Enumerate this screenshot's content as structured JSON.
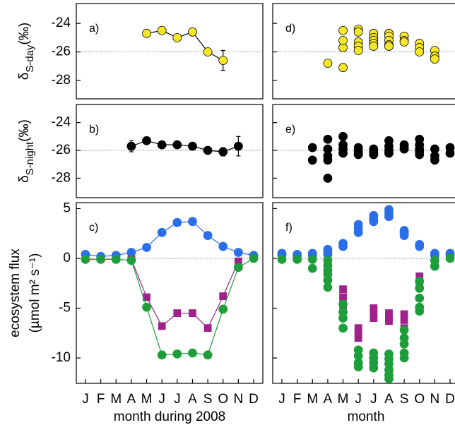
{
  "chart_data": [
    {
      "type": "line",
      "label": "a)",
      "ylabel": {
        "symbol": "δ",
        "subscript": "S-day",
        "unit": "(‰)"
      },
      "xlim": [
        0.4,
        12.6
      ],
      "ylim": [
        -29.3,
        -22.6
      ],
      "yticks": [
        -24,
        -26,
        -28
      ],
      "refline": -26,
      "series": [
        {
          "color": "#f5e62a",
          "edgecolor": "#000000",
          "linecolor": "#000000",
          "marker": "circle",
          "x": [
            5,
            6,
            7,
            8,
            9,
            10
          ],
          "values": [
            -24.7,
            -24.5,
            -25.0,
            -24.6,
            -26.0,
            -26.6
          ],
          "errors": [
            null,
            null,
            null,
            null,
            null,
            0.7
          ]
        }
      ]
    },
    {
      "type": "line",
      "label": "b)",
      "ylabel": {
        "symbol": "δ",
        "subscript": "S-night",
        "unit": "(‰)"
      },
      "xlim": [
        0.4,
        12.6
      ],
      "ylim": [
        -29.4,
        -22.7
      ],
      "yticks": [
        -24,
        -26,
        -28
      ],
      "refline": -26,
      "series": [
        {
          "color": "#000000",
          "edgecolor": "#000000",
          "linecolor": "#000000",
          "marker": "circle",
          "x": [
            4,
            5,
            6,
            7,
            8,
            9,
            10,
            11
          ],
          "values": [
            -25.7,
            -25.3,
            -25.6,
            -25.6,
            -25.7,
            -26.0,
            -26.1,
            -25.7
          ],
          "errors": [
            0.4,
            null,
            null,
            null,
            null,
            null,
            0.3,
            0.7
          ]
        }
      ]
    },
    {
      "type": "line",
      "label": "c)",
      "ylabel": [
        "ecosystem flux",
        "(µmol m² s⁻¹)"
      ],
      "xlabel": "month during 2008",
      "xlim": [
        0.4,
        12.6
      ],
      "ylim": [
        -12.55,
        5.6
      ],
      "yticks": [
        5,
        0,
        -5,
        -10
      ],
      "refline": 0,
      "xticks": [
        {
          "value": 1,
          "label": "J"
        },
        {
          "value": 2,
          "label": "F"
        },
        {
          "value": 3,
          "label": "M"
        },
        {
          "value": 4,
          "label": "A"
        },
        {
          "value": 5,
          "label": "M"
        },
        {
          "value": 6,
          "label": "J"
        },
        {
          "value": 7,
          "label": "J"
        },
        {
          "value": 8,
          "label": "A"
        },
        {
          "value": 9,
          "label": "S"
        },
        {
          "value": 10,
          "label": "O"
        },
        {
          "value": 11,
          "label": "N"
        },
        {
          "value": 12,
          "label": "D"
        }
      ],
      "series": [
        {
          "color": "#2b6fe8",
          "marker": "circle",
          "x": [
            1,
            2,
            3,
            4,
            5,
            6,
            7,
            8,
            9,
            10,
            11,
            12
          ],
          "values": [
            0.4,
            0.2,
            0.3,
            0.6,
            1.1,
            2.6,
            3.6,
            3.7,
            2.3,
            1.2,
            0.6,
            0.3
          ]
        },
        {
          "color": "#a0208c",
          "marker": "square",
          "x": [
            1,
            2,
            3,
            4,
            5,
            6,
            7,
            8,
            9,
            10,
            11,
            12
          ],
          "values": [
            null,
            null,
            null,
            -0.1,
            -3.9,
            -6.8,
            -5.5,
            -5.5,
            -7.0,
            -3.8,
            -0.3,
            null
          ]
        },
        {
          "color": "#1e9e3a",
          "marker": "circle",
          "x": [
            1,
            2,
            3,
            4,
            5,
            6,
            7,
            8,
            9,
            10,
            11,
            12
          ],
          "values": [
            -0.1,
            -0.1,
            -0.1,
            -0.2,
            -4.9,
            -9.7,
            -9.6,
            -9.5,
            -9.7,
            -5.1,
            -0.9,
            0.0
          ]
        }
      ]
    },
    {
      "type": "scatter",
      "label": "d)",
      "xlim": [
        0.4,
        12.6
      ],
      "ylim": [
        -29.3,
        -22.6
      ],
      "yticks": [
        -24,
        -26,
        -28
      ],
      "refline": -26,
      "series": [
        {
          "color": "#f5e62a",
          "edgecolor": "#000000",
          "marker": "circle",
          "x": [
            4,
            5,
            5,
            5,
            5,
            6,
            6,
            6,
            6,
            6,
            7,
            7,
            7,
            7,
            7,
            8,
            8,
            8,
            8,
            8,
            9,
            9,
            9,
            10,
            10,
            10,
            11,
            11,
            11
          ],
          "values": [
            -26.8,
            -27.1,
            -25.7,
            -25.2,
            -24.5,
            -24.4,
            -24.6,
            -25.3,
            -25.6,
            -25.9,
            -24.7,
            -25.0,
            -25.2,
            -25.4,
            -25.6,
            -24.7,
            -24.9,
            -25.2,
            -25.5,
            -25.6,
            -24.9,
            -25.2,
            -25.3,
            -25.4,
            -25.7,
            -26.0,
            -25.9,
            -26.3,
            -26.5
          ]
        }
      ]
    },
    {
      "type": "scatter",
      "label": "e)",
      "xlim": [
        0.4,
        12.6
      ],
      "ylim": [
        -29.4,
        -22.7
      ],
      "yticks": [
        -24,
        -26,
        -28
      ],
      "refline": -26,
      "series": [
        {
          "color": "#000000",
          "edgecolor": "#000000",
          "marker": "circle",
          "x": [
            3,
            3,
            4,
            4,
            4,
            4,
            4,
            5,
            5,
            5,
            5,
            6,
            6,
            6,
            6,
            7,
            7,
            7,
            7,
            8,
            8,
            8,
            8,
            9,
            9,
            9,
            10,
            10,
            10,
            10,
            10,
            11,
            11,
            11,
            12,
            12
          ],
          "values": [
            -25.8,
            -26.7,
            -25.2,
            -25.9,
            -26.4,
            -26.7,
            -28.0,
            -25.0,
            -25.6,
            -25.9,
            -26.2,
            -25.8,
            -26.0,
            -26.2,
            -26.3,
            -25.9,
            -26.1,
            -26.2,
            -26.3,
            -25.3,
            -25.7,
            -26.0,
            -26.2,
            -25.6,
            -25.8,
            -25.9,
            -25.2,
            -25.6,
            -25.9,
            -26.1,
            -26.3,
            -25.9,
            -26.4,
            -26.7,
            -25.8,
            -26.2
          ]
        }
      ]
    },
    {
      "type": "scatter",
      "label": "f)",
      "xlabel": "month",
      "xlim": [
        0.4,
        12.6
      ],
      "ylim": [
        -12.55,
        5.6
      ],
      "yticks": [
        5,
        0,
        -5,
        -10
      ],
      "refline": 0,
      "xticks": [
        {
          "value": 1,
          "label": "J"
        },
        {
          "value": 2,
          "label": "F"
        },
        {
          "value": 3,
          "label": "M"
        },
        {
          "value": 4,
          "label": "A"
        },
        {
          "value": 5,
          "label": "M"
        },
        {
          "value": 6,
          "label": "J"
        },
        {
          "value": 7,
          "label": "J"
        },
        {
          "value": 8,
          "label": "A"
        },
        {
          "value": 9,
          "label": "S"
        },
        {
          "value": 10,
          "label": "O"
        },
        {
          "value": 11,
          "label": "N"
        },
        {
          "value": 12,
          "label": "D"
        }
      ],
      "series": [
        {
          "color": "#2b6fe8",
          "marker": "circle",
          "x": [
            1,
            1,
            2,
            2,
            3,
            3,
            4,
            4,
            4,
            5,
            5,
            6,
            6,
            6,
            7,
            7,
            7,
            8,
            8,
            8,
            9,
            9,
            9,
            10,
            10,
            11,
            11,
            12,
            12
          ],
          "values": [
            0.3,
            0.5,
            0.2,
            0.4,
            0.3,
            0.5,
            0.4,
            0.7,
            0.9,
            1.2,
            1.5,
            2.6,
            3.0,
            3.4,
            3.7,
            4.0,
            4.3,
            4.2,
            4.6,
            4.9,
            2.3,
            2.6,
            2.8,
            1.2,
            1.4,
            0.3,
            0.5,
            0.3,
            0.5
          ]
        },
        {
          "color": "#a0208c",
          "marker": "square",
          "x": [
            5,
            5,
            5,
            6,
            6,
            6,
            7,
            7,
            7,
            8,
            8,
            8,
            9,
            9,
            9,
            10,
            10,
            11
          ],
          "values": [
            -3.1,
            -3.9,
            -4.7,
            -7.0,
            -7.5,
            -8.0,
            -5.0,
            -5.5,
            -6.0,
            -5.5,
            -6.0,
            -6.3,
            -5.6,
            -6.2,
            -7.0,
            -1.8,
            -2.5,
            -0.3
          ]
        },
        {
          "color": "#1e9e3a",
          "marker": "circle",
          "x": [
            1,
            2,
            3,
            3,
            4,
            4,
            4,
            4,
            4,
            4,
            5,
            5,
            5,
            5,
            6,
            6,
            6,
            6,
            7,
            7,
            7,
            7,
            8,
            8,
            8,
            8,
            8,
            8,
            9,
            9,
            9,
            9,
            9,
            10,
            10,
            10,
            10,
            10,
            11,
            11,
            12
          ],
          "values": [
            -0.1,
            -0.1,
            -0.1,
            -1.0,
            -0.2,
            -0.7,
            -1.2,
            -1.6,
            -2.2,
            -2.9,
            -4.6,
            -5.4,
            -6.0,
            -7.0,
            -9.2,
            -9.8,
            -10.5,
            -10.9,
            -9.5,
            -10.0,
            -10.5,
            -11.0,
            -9.6,
            -10.1,
            -10.6,
            -11.2,
            -11.7,
            -12.1,
            -7.2,
            -8.0,
            -8.6,
            -9.5,
            -10.0,
            -2.3,
            -3.0,
            -4.0,
            -4.9,
            -5.3,
            -0.2,
            -0.8,
            0.0
          ]
        }
      ]
    }
  ]
}
